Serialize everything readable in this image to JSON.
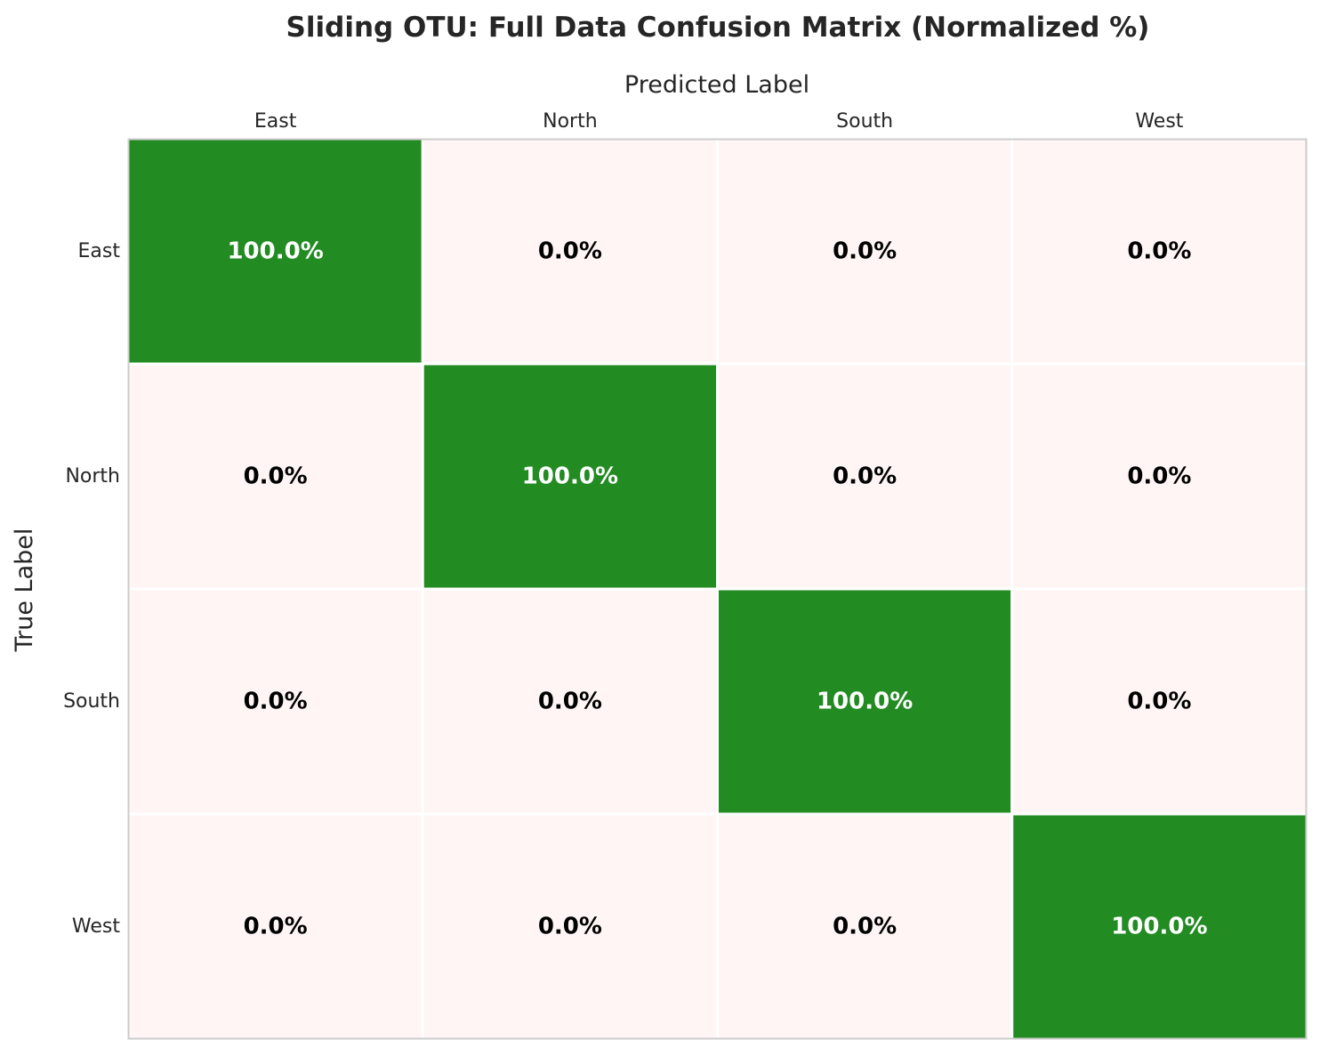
{
  "chart_data": {
    "type": "heatmap",
    "title": "Sliding OTU: Full Data Confusion Matrix (Normalized %)",
    "xlabel": "Predicted Label",
    "ylabel": "True Label",
    "x_categories": [
      "East",
      "North",
      "South",
      "West"
    ],
    "y_categories": [
      "East",
      "North",
      "South",
      "West"
    ],
    "values": [
      [
        100.0,
        0.0,
        0.0,
        0.0
      ],
      [
        0.0,
        100.0,
        0.0,
        0.0
      ],
      [
        0.0,
        0.0,
        100.0,
        0.0
      ],
      [
        0.0,
        0.0,
        0.0,
        100.0
      ]
    ],
    "cell_labels": [
      [
        "100.0%",
        "0.0%",
        "0.0%",
        "0.0%"
      ],
      [
        "0.0%",
        "100.0%",
        "0.0%",
        "0.0%"
      ],
      [
        "0.0%",
        "0.0%",
        "100.0%",
        "0.0%"
      ],
      [
        "0.0%",
        "0.0%",
        "0.0%",
        "100.0%"
      ]
    ],
    "x_axis_position": "top",
    "colors": {
      "high": "#228b22",
      "low": "#fff5f5",
      "high_text": "#ffffff",
      "low_text": "#000000",
      "cell_border": "#ffffff",
      "frame": "#cccccc"
    }
  }
}
